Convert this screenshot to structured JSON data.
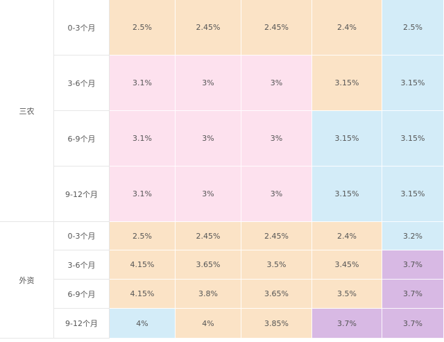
{
  "groups": {
    "sannong": {
      "label": "三农"
    },
    "waizi": {
      "label": "外资"
    }
  },
  "periods": {
    "p1": "0-3个月",
    "p2": "3-6个月",
    "p3": "6-9个月",
    "p4": "9-12个月"
  },
  "colors": {
    "orange": "#fbe3c6",
    "pink": "#fde1ee",
    "blue": "#d3ecf8",
    "purple": "#d8b9e4"
  },
  "sannong": {
    "r0": [
      "2.5%",
      "2.45%",
      "2.45%",
      "2.4%",
      "2.5%"
    ],
    "r1": [
      "3.1%",
      "3%",
      "3%",
      "3.15%",
      "3.15%"
    ],
    "r2": [
      "3.1%",
      "3%",
      "3%",
      "3.15%",
      "3.15%"
    ],
    "r3": [
      "3.1%",
      "3%",
      "3%",
      "3.15%",
      "3.15%"
    ]
  },
  "waizi": {
    "r0": [
      "2.5%",
      "2.45%",
      "2.45%",
      "2.4%",
      "3.2%"
    ],
    "r1": [
      "4.15%",
      "3.65%",
      "3.5%",
      "3.45%",
      "3.7%"
    ],
    "r2": [
      "4.15%",
      "3.8%",
      "3.65%",
      "3.5%",
      "3.7%"
    ],
    "r3": [
      "4%",
      "4%",
      "3.85%",
      "3.7%",
      "3.7%"
    ]
  }
}
